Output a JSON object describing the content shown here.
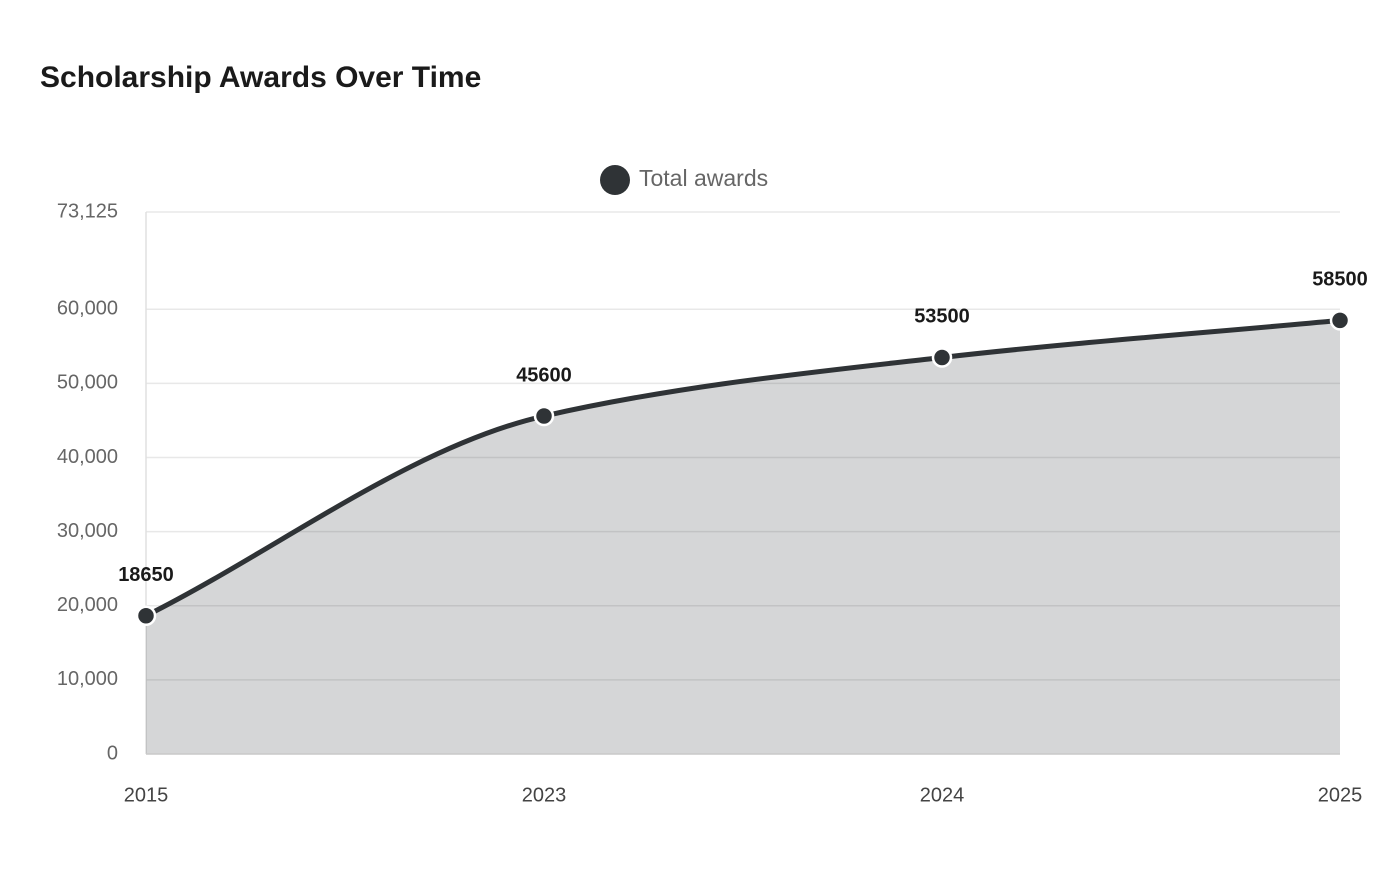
{
  "chart_data": {
    "type": "area",
    "title": "Scholarship Awards Over Time",
    "categories": [
      "2015",
      "2023",
      "2024",
      "2025"
    ],
    "series": [
      {
        "name": "Total awards",
        "color": "#2f3336",
        "values": [
          18650,
          45600,
          53500,
          58500
        ]
      }
    ],
    "ylim": [
      0,
      73125
    ],
    "yticks": [
      0,
      {
        "value": 10000,
        "label": "10,000"
      },
      {
        "value": 20000,
        "label": "20,000"
      },
      {
        "value": 30000,
        "label": "30,000"
      },
      {
        "value": 40000,
        "label": "40,000"
      },
      {
        "value": 50000,
        "label": "50,000"
      },
      {
        "value": 60000,
        "label": "60,000"
      },
      {
        "value": 73125,
        "label": "73,125"
      }
    ],
    "grid": true,
    "legend": "top"
  }
}
